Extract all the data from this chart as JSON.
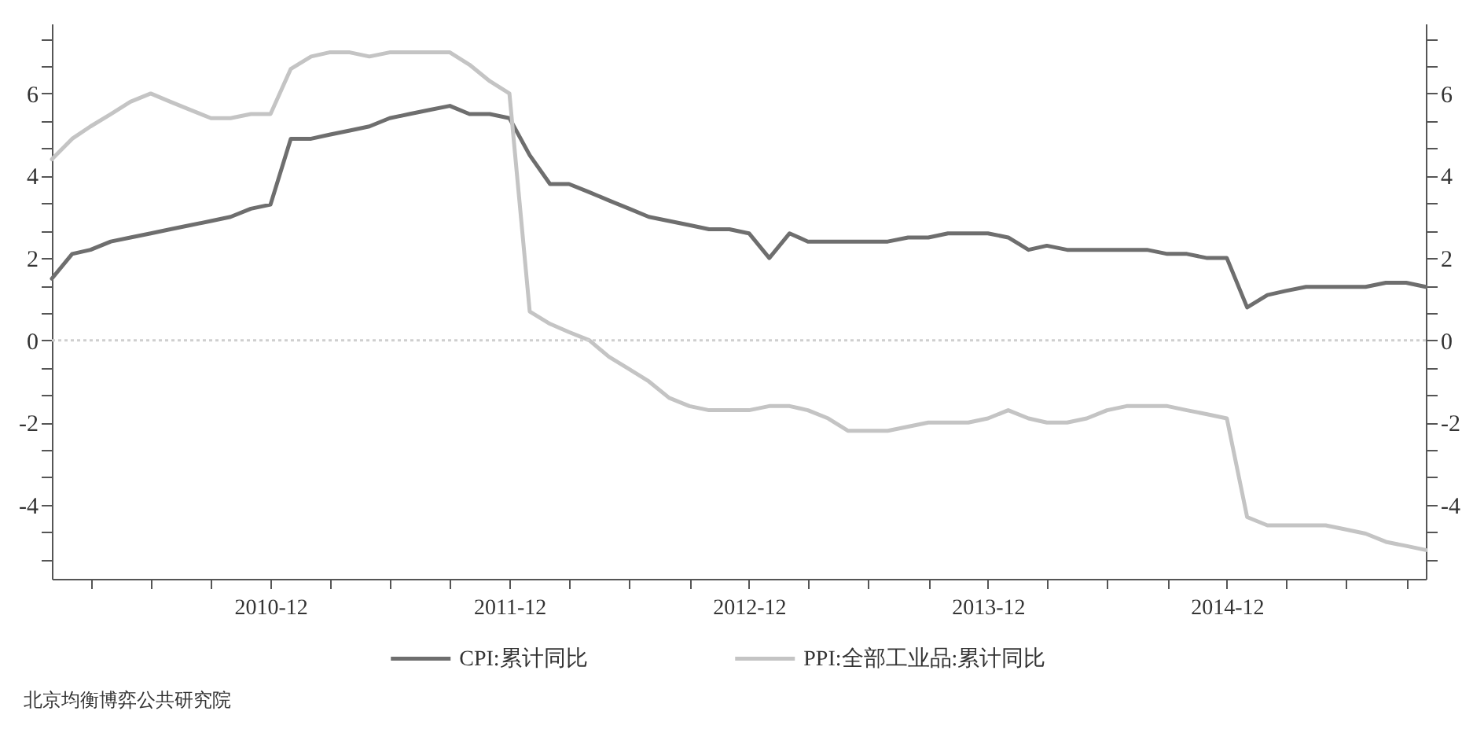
{
  "chart_data": {
    "type": "line",
    "x": [
      "2010-01",
      "2010-02",
      "2010-03",
      "2010-04",
      "2010-05",
      "2010-06",
      "2010-07",
      "2010-08",
      "2010-09",
      "2010-10",
      "2010-11",
      "2010-12",
      "2011-01",
      "2011-02",
      "2011-03",
      "2011-04",
      "2011-05",
      "2011-06",
      "2011-07",
      "2011-08",
      "2011-09",
      "2011-10",
      "2011-11",
      "2011-12",
      "2012-01",
      "2012-02",
      "2012-03",
      "2012-04",
      "2012-05",
      "2012-06",
      "2012-07",
      "2012-08",
      "2012-09",
      "2012-10",
      "2012-11",
      "2012-12",
      "2013-01",
      "2013-02",
      "2013-03",
      "2013-04",
      "2013-05",
      "2013-06",
      "2013-07",
      "2013-08",
      "2013-09",
      "2013-10",
      "2013-11",
      "2013-12",
      "2014-01",
      "2014-02",
      "2014-03",
      "2014-04",
      "2014-05",
      "2014-06",
      "2014-07",
      "2014-08",
      "2014-09",
      "2014-10",
      "2014-11",
      "2014-12",
      "2015-01",
      "2015-02",
      "2015-03",
      "2015-04",
      "2015-05",
      "2015-06",
      "2015-07",
      "2015-08",
      "2015-09",
      "2015-10"
    ],
    "series": [
      {
        "name": "CPI:累计同比",
        "color": "#6e6e6e",
        "values": [
          1.5,
          2.1,
          2.2,
          2.4,
          2.5,
          2.6,
          2.7,
          2.8,
          2.9,
          3.0,
          3.2,
          3.3,
          4.9,
          4.9,
          5.0,
          5.1,
          5.2,
          5.4,
          5.5,
          5.6,
          5.7,
          5.5,
          5.5,
          5.4,
          4.5,
          3.8,
          3.8,
          3.6,
          3.4,
          3.2,
          3.0,
          2.9,
          2.8,
          2.7,
          2.7,
          2.6,
          2.0,
          2.6,
          2.4,
          2.4,
          2.4,
          2.4,
          2.4,
          2.5,
          2.5,
          2.6,
          2.6,
          2.6,
          2.5,
          2.2,
          2.3,
          2.2,
          2.2,
          2.2,
          2.2,
          2.2,
          2.1,
          2.1,
          2.0,
          2.0,
          0.8,
          1.1,
          1.2,
          1.3,
          1.3,
          1.3,
          1.3,
          1.4,
          1.4,
          1.3
        ]
      },
      {
        "name": "PPI:全部工业品:累计同比",
        "color": "#c4c4c4",
        "values": [
          4.4,
          4.9,
          5.2,
          5.5,
          5.8,
          6.0,
          5.8,
          5.6,
          5.4,
          5.4,
          5.5,
          5.5,
          6.6,
          6.9,
          7.0,
          7.0,
          6.9,
          7.0,
          7.0,
          7.0,
          7.0,
          6.7,
          6.3,
          6.0,
          0.7,
          0.4,
          0.2,
          0.0,
          -0.4,
          -0.7,
          -1.0,
          -1.4,
          -1.6,
          -1.7,
          -1.7,
          -1.7,
          -1.6,
          -1.6,
          -1.7,
          -1.9,
          -2.2,
          -2.2,
          -2.2,
          -2.1,
          -2.0,
          -2.0,
          -2.0,
          -1.9,
          -1.7,
          -1.9,
          -2.0,
          -2.0,
          -1.9,
          -1.7,
          -1.6,
          -1.6,
          -1.6,
          -1.7,
          -1.8,
          -1.9,
          -4.3,
          -4.5,
          -4.5,
          -4.5,
          -4.5,
          -4.6,
          -4.7,
          -4.9,
          -5.0,
          -5.1
        ]
      }
    ],
    "xlim": [
      "2010-01",
      "2015-10"
    ],
    "xticks": [
      {
        "value": "2010-03",
        "label": null
      },
      {
        "value": "2010-06",
        "label": null
      },
      {
        "value": "2010-09",
        "label": null
      },
      "2010-12",
      {
        "value": "2011-03",
        "label": null
      },
      {
        "value": "2011-06",
        "label": null
      },
      {
        "value": "2011-09",
        "label": null
      },
      "2011-12",
      {
        "value": "2012-03",
        "label": null
      },
      {
        "value": "2012-06",
        "label": null
      },
      {
        "value": "2012-09",
        "label": null
      },
      "2012-12",
      {
        "value": "2013-03",
        "label": null
      },
      {
        "value": "2013-06",
        "label": null
      },
      {
        "value": "2013-09",
        "label": null
      },
      "2013-12",
      {
        "value": "2014-03",
        "label": null
      },
      {
        "value": "2014-06",
        "label": null
      },
      {
        "value": "2014-09",
        "label": null
      },
      "2014-12",
      {
        "value": "2015-03",
        "label": null
      },
      {
        "value": "2015-06",
        "label": null
      },
      {
        "value": "2015-09",
        "label": null
      }
    ],
    "ylim": [
      -5.8,
      7.7
    ],
    "yticks": [
      {
        "value": -5.33,
        "label": null
      },
      {
        "value": -4.67,
        "label": null
      },
      -4,
      {
        "value": -3.33,
        "label": null
      },
      {
        "value": -2.67,
        "label": null
      },
      -2,
      {
        "value": -1.33,
        "label": null
      },
      {
        "value": -0.67,
        "label": null
      },
      0,
      {
        "value": 0.67,
        "label": null
      },
      {
        "value": 1.33,
        "label": null
      },
      2,
      {
        "value": 2.67,
        "label": null
      },
      {
        "value": 3.33,
        "label": null
      },
      4,
      {
        "value": 4.67,
        "label": null
      },
      {
        "value": 5.33,
        "label": null
      },
      6,
      {
        "value": 6.67,
        "label": null
      },
      {
        "value": 7.33,
        "label": null
      }
    ],
    "y2lim": [
      -5.8,
      7.7
    ],
    "y2ticks": [
      {
        "value": -5.33,
        "label": null
      },
      {
        "value": -4.67,
        "label": null
      },
      -4,
      {
        "value": -3.33,
        "label": null
      },
      {
        "value": -2.67,
        "label": null
      },
      -2,
      {
        "value": -1.33,
        "label": null
      },
      {
        "value": -0.67,
        "label": null
      },
      0,
      {
        "value": 0.67,
        "label": null
      },
      {
        "value": 1.33,
        "label": null
      },
      2,
      {
        "value": 2.67,
        "label": null
      },
      {
        "value": 3.33,
        "label": null
      },
      4,
      {
        "value": 4.67,
        "label": null
      },
      {
        "value": 5.33,
        "label": null
      },
      6,
      {
        "value": 6.67,
        "label": null
      },
      {
        "value": 7.33,
        "label": null
      }
    ],
    "ref_lines": [
      {
        "axis": "y",
        "value": 0,
        "color": "#cfcfcf",
        "line_style": "dotted"
      }
    ],
    "grid": false,
    "legend": "bottom",
    "line_style": "solid",
    "annotations": [
      "北京均衡博弈公共研究院"
    ]
  }
}
